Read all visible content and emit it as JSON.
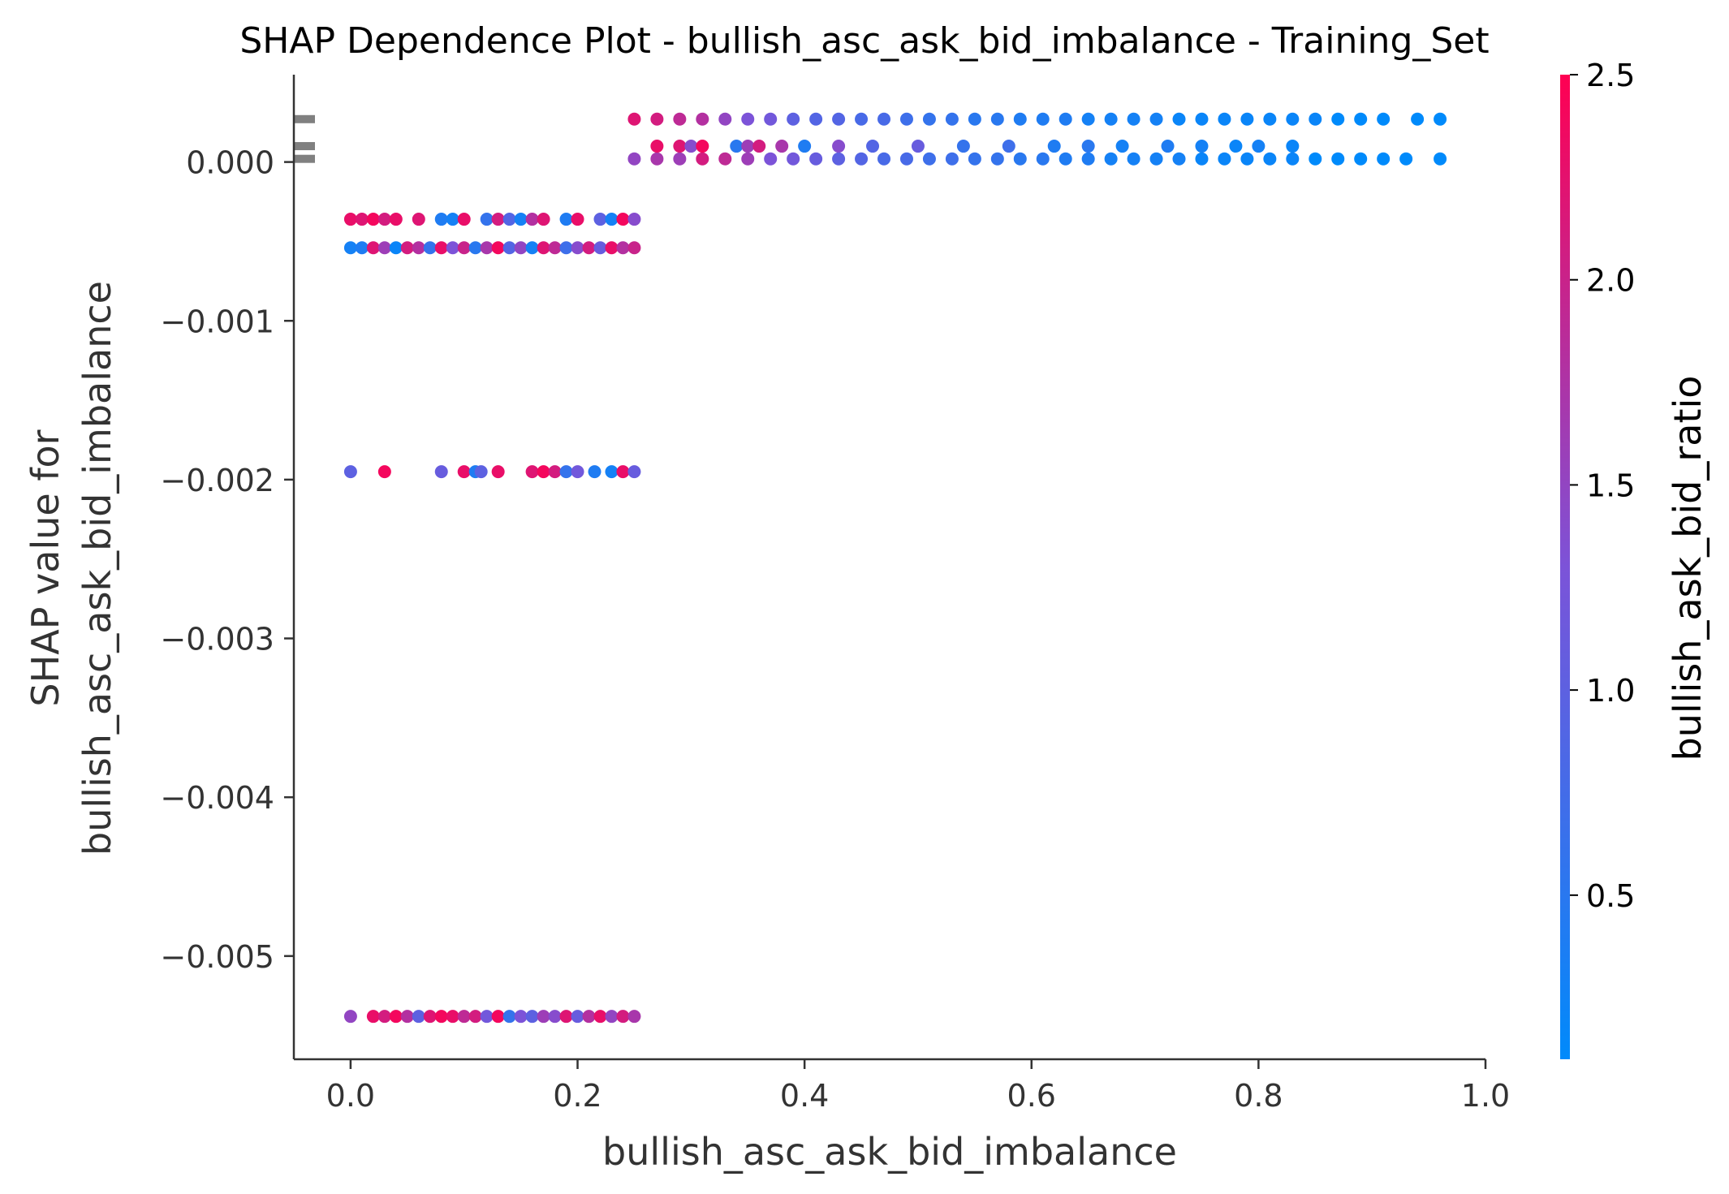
{
  "chart_data": {
    "type": "scatter",
    "title": "SHAP Dependence Plot - bullish_asc_ask_bid_imbalance - Training_Set",
    "xlabel": "bullish_asc_ask_bid_imbalance",
    "ylabel_lines": [
      "SHAP value for",
      "bullish_asc_ask_bid_imbalance"
    ],
    "xlim": [
      -0.05,
      1.0
    ],
    "ylim": [
      -0.00565,
      0.00055
    ],
    "x_ticks": [
      {
        "value": 0.0,
        "label": "0.0"
      },
      {
        "value": 0.2,
        "label": "0.2"
      },
      {
        "value": 0.4,
        "label": "0.4"
      },
      {
        "value": 0.6,
        "label": "0.6"
      },
      {
        "value": 0.8,
        "label": "0.8"
      },
      {
        "value": 1.0,
        "label": "1.0"
      }
    ],
    "y_ticks": [
      {
        "value": 0.0,
        "label": "0.000"
      },
      {
        "value": -0.001,
        "label": "−0.001"
      },
      {
        "value": -0.002,
        "label": "−0.002"
      },
      {
        "value": -0.003,
        "label": "−0.003"
      },
      {
        "value": -0.004,
        "label": "−0.004"
      },
      {
        "value": -0.005,
        "label": "−0.005"
      }
    ],
    "grid": false,
    "colorbar": {
      "label": "bullish_ask_bid_ratio",
      "range": [
        0.1,
        2.5
      ],
      "ticks": [
        {
          "value": 0.5,
          "label": "0.5"
        },
        {
          "value": 1.0,
          "label": "1.0"
        },
        {
          "value": 1.5,
          "label": "1.5"
        },
        {
          "value": 2.0,
          "label": "2.0"
        },
        {
          "value": 2.5,
          "label": "2.5"
        }
      ],
      "color_low": "#008afb",
      "color_high": "#ff0052"
    },
    "histogram_marks_y": [
      0.00027,
      0.0001,
      2e-05
    ],
    "series": [
      {
        "points": [
          {
            "x": 0.0,
            "y": -0.00054,
            "c": 0.3
          },
          {
            "x": 0.01,
            "y": -0.00054,
            "c": 0.4
          },
          {
            "x": 0.02,
            "y": -0.00054,
            "c": 2.2
          },
          {
            "x": 0.03,
            "y": -0.00054,
            "c": 1.6
          },
          {
            "x": 0.04,
            "y": -0.00054,
            "c": 0.2
          },
          {
            "x": 0.05,
            "y": -0.00054,
            "c": 2.1
          },
          {
            "x": 0.06,
            "y": -0.00054,
            "c": 1.8
          },
          {
            "x": 0.07,
            "y": -0.00054,
            "c": 0.6
          },
          {
            "x": 0.08,
            "y": -0.00054,
            "c": 2.3
          },
          {
            "x": 0.09,
            "y": -0.00054,
            "c": 1.3
          },
          {
            "x": 0.1,
            "y": -0.00054,
            "c": 2.0
          },
          {
            "x": 0.11,
            "y": -0.00054,
            "c": 0.5
          },
          {
            "x": 0.12,
            "y": -0.00054,
            "c": 1.7
          },
          {
            "x": 0.13,
            "y": -0.00054,
            "c": 2.4
          },
          {
            "x": 0.14,
            "y": -0.00054,
            "c": 0.9
          },
          {
            "x": 0.15,
            "y": -0.00054,
            "c": 1.5
          },
          {
            "x": 0.16,
            "y": -0.00054,
            "c": 0.3
          },
          {
            "x": 0.17,
            "y": -0.00054,
            "c": 2.2
          },
          {
            "x": 0.18,
            "y": -0.00054,
            "c": 1.9
          },
          {
            "x": 0.19,
            "y": -0.00054,
            "c": 0.7
          },
          {
            "x": 0.2,
            "y": -0.00054,
            "c": 1.4
          },
          {
            "x": 0.21,
            "y": -0.00054,
            "c": 2.1
          },
          {
            "x": 0.22,
            "y": -0.00054,
            "c": 1.1
          },
          {
            "x": 0.23,
            "y": -0.00054,
            "c": 2.3
          },
          {
            "x": 0.24,
            "y": -0.00054,
            "c": 1.8
          },
          {
            "x": 0.25,
            "y": -0.00054,
            "c": 2.0
          },
          {
            "x": 0.0,
            "y": -0.00036,
            "c": 2.3
          },
          {
            "x": 0.01,
            "y": -0.00036,
            "c": 2.2
          },
          {
            "x": 0.02,
            "y": -0.00036,
            "c": 2.4
          },
          {
            "x": 0.03,
            "y": -0.00036,
            "c": 2.1
          },
          {
            "x": 0.04,
            "y": -0.00036,
            "c": 2.3
          },
          {
            "x": 0.06,
            "y": -0.00036,
            "c": 2.2
          },
          {
            "x": 0.08,
            "y": -0.00036,
            "c": 0.4
          },
          {
            "x": 0.09,
            "y": -0.00036,
            "c": 0.3
          },
          {
            "x": 0.1,
            "y": -0.00036,
            "c": 2.3
          },
          {
            "x": 0.12,
            "y": -0.00036,
            "c": 0.6
          },
          {
            "x": 0.13,
            "y": -0.00036,
            "c": 2.1
          },
          {
            "x": 0.14,
            "y": -0.00036,
            "c": 0.9
          },
          {
            "x": 0.15,
            "y": -0.00036,
            "c": 0.3
          },
          {
            "x": 0.16,
            "y": -0.00036,
            "c": 1.8
          },
          {
            "x": 0.17,
            "y": -0.00036,
            "c": 2.2
          },
          {
            "x": 0.19,
            "y": -0.00036,
            "c": 0.4
          },
          {
            "x": 0.2,
            "y": -0.00036,
            "c": 2.3
          },
          {
            "x": 0.22,
            "y": -0.00036,
            "c": 1.0
          },
          {
            "x": 0.23,
            "y": -0.00036,
            "c": 0.3
          },
          {
            "x": 0.24,
            "y": -0.00036,
            "c": 2.4
          },
          {
            "x": 0.25,
            "y": -0.00036,
            "c": 1.4
          },
          {
            "x": 0.0,
            "y": -0.00195,
            "c": 1.0
          },
          {
            "x": 0.03,
            "y": -0.00195,
            "c": 2.4
          },
          {
            "x": 0.08,
            "y": -0.00195,
            "c": 1.1
          },
          {
            "x": 0.1,
            "y": -0.00195,
            "c": 2.3
          },
          {
            "x": 0.11,
            "y": -0.00195,
            "c": 0.4
          },
          {
            "x": 0.115,
            "y": -0.00195,
            "c": 1.0
          },
          {
            "x": 0.13,
            "y": -0.00195,
            "c": 2.3
          },
          {
            "x": 0.16,
            "y": -0.00195,
            "c": 2.2
          },
          {
            "x": 0.17,
            "y": -0.00195,
            "c": 2.4
          },
          {
            "x": 0.18,
            "y": -0.00195,
            "c": 2.1
          },
          {
            "x": 0.19,
            "y": -0.00195,
            "c": 0.6
          },
          {
            "x": 0.2,
            "y": -0.00195,
            "c": 1.2
          },
          {
            "x": 0.215,
            "y": -0.00195,
            "c": 0.4
          },
          {
            "x": 0.23,
            "y": -0.00195,
            "c": 0.3
          },
          {
            "x": 0.24,
            "y": -0.00195,
            "c": 2.3
          },
          {
            "x": 0.25,
            "y": -0.00195,
            "c": 1.1
          },
          {
            "x": 0.0,
            "y": -0.00538,
            "c": 1.5
          },
          {
            "x": 0.02,
            "y": -0.00538,
            "c": 2.3
          },
          {
            "x": 0.03,
            "y": -0.00538,
            "c": 2.1
          },
          {
            "x": 0.04,
            "y": -0.00538,
            "c": 2.4
          },
          {
            "x": 0.05,
            "y": -0.00538,
            "c": 1.8
          },
          {
            "x": 0.06,
            "y": -0.00538,
            "c": 1.0
          },
          {
            "x": 0.07,
            "y": -0.00538,
            "c": 2.2
          },
          {
            "x": 0.08,
            "y": -0.00538,
            "c": 2.4
          },
          {
            "x": 0.09,
            "y": -0.00538,
            "c": 2.3
          },
          {
            "x": 0.1,
            "y": -0.00538,
            "c": 1.9
          },
          {
            "x": 0.11,
            "y": -0.00538,
            "c": 2.1
          },
          {
            "x": 0.12,
            "y": -0.00538,
            "c": 1.2
          },
          {
            "x": 0.13,
            "y": -0.00538,
            "c": 2.4
          },
          {
            "x": 0.14,
            "y": -0.00538,
            "c": 0.6
          },
          {
            "x": 0.15,
            "y": -0.00538,
            "c": 1.3
          },
          {
            "x": 0.16,
            "y": -0.00538,
            "c": 1.0
          },
          {
            "x": 0.17,
            "y": -0.00538,
            "c": 1.6
          },
          {
            "x": 0.18,
            "y": -0.00538,
            "c": 1.4
          },
          {
            "x": 0.19,
            "y": -0.00538,
            "c": 2.2
          },
          {
            "x": 0.2,
            "y": -0.00538,
            "c": 1.1
          },
          {
            "x": 0.21,
            "y": -0.00538,
            "c": 1.8
          },
          {
            "x": 0.22,
            "y": -0.00538,
            "c": 2.3
          },
          {
            "x": 0.23,
            "y": -0.00538,
            "c": 1.5
          },
          {
            "x": 0.24,
            "y": -0.00538,
            "c": 2.1
          },
          {
            "x": 0.25,
            "y": -0.00538,
            "c": 1.7
          },
          {
            "x": 0.25,
            "y": 0.00027,
            "c": 2.2
          },
          {
            "x": 0.27,
            "y": 0.00027,
            "c": 2.1
          },
          {
            "x": 0.29,
            "y": 0.00027,
            "c": 1.9
          },
          {
            "x": 0.31,
            "y": 0.00027,
            "c": 1.8
          },
          {
            "x": 0.33,
            "y": 0.00027,
            "c": 1.5
          },
          {
            "x": 0.35,
            "y": 0.00027,
            "c": 1.3
          },
          {
            "x": 0.37,
            "y": 0.00027,
            "c": 1.2
          },
          {
            "x": 0.39,
            "y": 0.00027,
            "c": 1.0
          },
          {
            "x": 0.41,
            "y": 0.00027,
            "c": 0.9
          },
          {
            "x": 0.43,
            "y": 0.00027,
            "c": 0.9
          },
          {
            "x": 0.45,
            "y": 0.00027,
            "c": 0.8
          },
          {
            "x": 0.47,
            "y": 0.00027,
            "c": 0.8
          },
          {
            "x": 0.49,
            "y": 0.00027,
            "c": 0.7
          },
          {
            "x": 0.51,
            "y": 0.00027,
            "c": 0.6
          },
          {
            "x": 0.53,
            "y": 0.00027,
            "c": 0.6
          },
          {
            "x": 0.55,
            "y": 0.00027,
            "c": 0.5
          },
          {
            "x": 0.57,
            "y": 0.00027,
            "c": 0.5
          },
          {
            "x": 0.59,
            "y": 0.00027,
            "c": 0.4
          },
          {
            "x": 0.61,
            "y": 0.00027,
            "c": 0.4
          },
          {
            "x": 0.63,
            "y": 0.00027,
            "c": 0.4
          },
          {
            "x": 0.65,
            "y": 0.00027,
            "c": 0.3
          },
          {
            "x": 0.67,
            "y": 0.00027,
            "c": 0.3
          },
          {
            "x": 0.69,
            "y": 0.00027,
            "c": 0.3
          },
          {
            "x": 0.71,
            "y": 0.00027,
            "c": 0.3
          },
          {
            "x": 0.73,
            "y": 0.00027,
            "c": 0.2
          },
          {
            "x": 0.75,
            "y": 0.00027,
            "c": 0.2
          },
          {
            "x": 0.77,
            "y": 0.00027,
            "c": 0.2
          },
          {
            "x": 0.79,
            "y": 0.00027,
            "c": 0.2
          },
          {
            "x": 0.81,
            "y": 0.00027,
            "c": 0.2
          },
          {
            "x": 0.83,
            "y": 0.00027,
            "c": 0.2
          },
          {
            "x": 0.85,
            "y": 0.00027,
            "c": 0.2
          },
          {
            "x": 0.87,
            "y": 0.00027,
            "c": 0.1
          },
          {
            "x": 0.89,
            "y": 0.00027,
            "c": 0.1
          },
          {
            "x": 0.91,
            "y": 0.00027,
            "c": 0.1
          },
          {
            "x": 0.94,
            "y": 0.00027,
            "c": 0.1
          },
          {
            "x": 0.96,
            "y": 0.00027,
            "c": 0.1
          },
          {
            "x": 0.25,
            "y": 2e-05,
            "c": 1.5
          },
          {
            "x": 0.27,
            "y": 2e-05,
            "c": 1.7
          },
          {
            "x": 0.29,
            "y": 2e-05,
            "c": 1.6
          },
          {
            "x": 0.31,
            "y": 2e-05,
            "c": 2.1
          },
          {
            "x": 0.33,
            "y": 2e-05,
            "c": 1.9
          },
          {
            "x": 0.35,
            "y": 2e-05,
            "c": 1.6
          },
          {
            "x": 0.37,
            "y": 2e-05,
            "c": 1.3
          },
          {
            "x": 0.39,
            "y": 2e-05,
            "c": 1.2
          },
          {
            "x": 0.41,
            "y": 2e-05,
            "c": 1.1
          },
          {
            "x": 0.43,
            "y": 2e-05,
            "c": 1.0
          },
          {
            "x": 0.45,
            "y": 2e-05,
            "c": 0.9
          },
          {
            "x": 0.47,
            "y": 2e-05,
            "c": 0.8
          },
          {
            "x": 0.49,
            "y": 2e-05,
            "c": 0.8
          },
          {
            "x": 0.51,
            "y": 2e-05,
            "c": 0.7
          },
          {
            "x": 0.53,
            "y": 2e-05,
            "c": 0.7
          },
          {
            "x": 0.55,
            "y": 2e-05,
            "c": 0.6
          },
          {
            "x": 0.57,
            "y": 2e-05,
            "c": 0.6
          },
          {
            "x": 0.59,
            "y": 2e-05,
            "c": 0.5
          },
          {
            "x": 0.61,
            "y": 2e-05,
            "c": 0.5
          },
          {
            "x": 0.63,
            "y": 2e-05,
            "c": 0.4
          },
          {
            "x": 0.65,
            "y": 2e-05,
            "c": 0.4
          },
          {
            "x": 0.67,
            "y": 2e-05,
            "c": 0.3
          },
          {
            "x": 0.69,
            "y": 2e-05,
            "c": 0.3
          },
          {
            "x": 0.71,
            "y": 2e-05,
            "c": 0.3
          },
          {
            "x": 0.73,
            "y": 2e-05,
            "c": 0.3
          },
          {
            "x": 0.75,
            "y": 2e-05,
            "c": 0.2
          },
          {
            "x": 0.77,
            "y": 2e-05,
            "c": 0.2
          },
          {
            "x": 0.79,
            "y": 2e-05,
            "c": 0.2
          },
          {
            "x": 0.81,
            "y": 2e-05,
            "c": 0.2
          },
          {
            "x": 0.83,
            "y": 2e-05,
            "c": 0.2
          },
          {
            "x": 0.85,
            "y": 2e-05,
            "c": 0.1
          },
          {
            "x": 0.87,
            "y": 2e-05,
            "c": 0.1
          },
          {
            "x": 0.89,
            "y": 2e-05,
            "c": 0.1
          },
          {
            "x": 0.91,
            "y": 2e-05,
            "c": 0.1
          },
          {
            "x": 0.93,
            "y": 2e-05,
            "c": 0.1
          },
          {
            "x": 0.96,
            "y": 2e-05,
            "c": 0.1
          },
          {
            "x": 0.27,
            "y": 0.0001,
            "c": 2.3
          },
          {
            "x": 0.29,
            "y": 0.0001,
            "c": 2.2
          },
          {
            "x": 0.3,
            "y": 0.0001,
            "c": 1.4
          },
          {
            "x": 0.31,
            "y": 0.0001,
            "c": 2.4
          },
          {
            "x": 0.34,
            "y": 0.0001,
            "c": 0.5
          },
          {
            "x": 0.35,
            "y": 0.0001,
            "c": 1.6
          },
          {
            "x": 0.36,
            "y": 0.0001,
            "c": 2.1
          },
          {
            "x": 0.38,
            "y": 0.0001,
            "c": 1.7
          },
          {
            "x": 0.4,
            "y": 0.0001,
            "c": 0.4
          },
          {
            "x": 0.43,
            "y": 0.0001,
            "c": 1.4
          },
          {
            "x": 0.46,
            "y": 0.0001,
            "c": 0.9
          },
          {
            "x": 0.5,
            "y": 0.0001,
            "c": 1.1
          },
          {
            "x": 0.54,
            "y": 0.0001,
            "c": 0.6
          },
          {
            "x": 0.58,
            "y": 0.0001,
            "c": 0.7
          },
          {
            "x": 0.62,
            "y": 0.0001,
            "c": 0.4
          },
          {
            "x": 0.65,
            "y": 0.0001,
            "c": 0.5
          },
          {
            "x": 0.68,
            "y": 0.0001,
            "c": 0.3
          },
          {
            "x": 0.72,
            "y": 0.0001,
            "c": 0.4
          },
          {
            "x": 0.75,
            "y": 0.0001,
            "c": 0.3
          },
          {
            "x": 0.78,
            "y": 0.0001,
            "c": 0.2
          },
          {
            "x": 0.8,
            "y": 0.0001,
            "c": 0.3
          },
          {
            "x": 0.83,
            "y": 0.0001,
            "c": 0.2
          }
        ]
      }
    ]
  }
}
